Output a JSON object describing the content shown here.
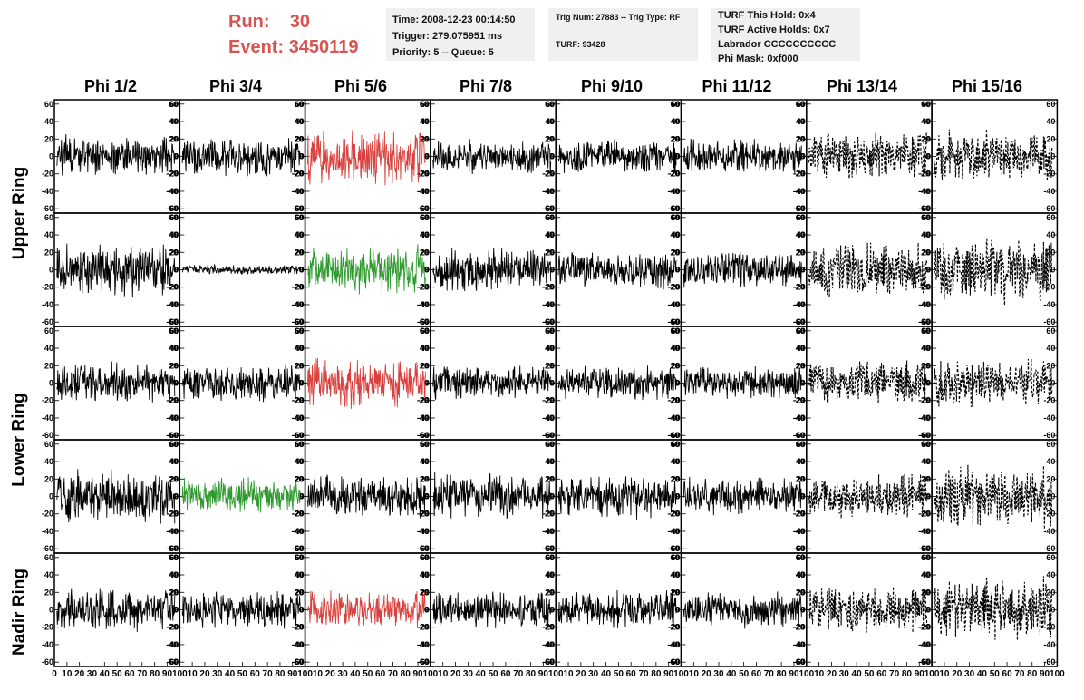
{
  "header": {
    "run_label": "Run:",
    "run_value": "30",
    "event_label": "Event:",
    "event_value": "3450119"
  },
  "info_time": {
    "time": "Time: 2008-12-23 00:14:50",
    "trigger": "Trigger: 279.075951 ms",
    "priority": "Priority: 5 -- Queue: 5"
  },
  "info_trig": {
    "trig": "Trig Num: 27883 -- Trig Type: RF",
    "turf": "TURF: 93428"
  },
  "info_turf": {
    "hold": "TURF This Hold: 0x4",
    "active": "TURF Active Holds: 0x7",
    "labrador": "Labrador CCCCCCCCCC",
    "phimask": "Phi Mask: 0xf000"
  },
  "phi_labels": [
    "Phi 1/2",
    "Phi 3/4",
    "Phi 5/6",
    "Phi 7/8",
    "Phi 9/10",
    "Phi 11/12",
    "Phi 13/14",
    "Phi 15/16"
  ],
  "ring_labels": [
    "Upper Ring",
    "Lower Ring",
    "Nadir Ring"
  ],
  "y_ticks": [
    60,
    40,
    20,
    0,
    -20,
    -40,
    -60
  ],
  "x_ticks": [
    0,
    10,
    20,
    30,
    40,
    50,
    60,
    70,
    80,
    90,
    100
  ],
  "colors": {
    "black": "#000000",
    "red": "#d9413e",
    "green": "#2e9a2e",
    "header_red": "#d9534f",
    "info_bg": "#f0f0f0"
  },
  "chart_data": {
    "type": "line",
    "x_range": [
      0,
      100
    ],
    "y_range": [
      -65,
      65
    ],
    "rows": 5,
    "columns": 8,
    "panel_colors": [
      [
        "black",
        "black",
        "red",
        "black",
        "black",
        "black",
        "black-dashed",
        "black-dashed"
      ],
      [
        "black",
        "black",
        "green",
        "black",
        "black",
        "black",
        "black-dashed",
        "black-dashed"
      ],
      [
        "black",
        "black",
        "red",
        "black",
        "black",
        "black",
        "black-dashed",
        "black-dashed"
      ],
      [
        "black",
        "green",
        "black",
        "black",
        "black",
        "black",
        "black-dashed",
        "black-dashed"
      ],
      [
        "black",
        "black",
        "red",
        "black",
        "black",
        "black",
        "black-dashed",
        "black-dashed"
      ]
    ],
    "panel_amplitudes": [
      [
        18,
        16,
        24,
        14,
        14,
        14,
        20,
        22
      ],
      [
        22,
        4,
        20,
        18,
        16,
        16,
        24,
        28
      ],
      [
        17,
        16,
        22,
        14,
        14,
        14,
        20,
        20
      ],
      [
        22,
        16,
        18,
        20,
        18,
        16,
        18,
        26
      ],
      [
        18,
        16,
        16,
        16,
        16,
        16,
        20,
        26
      ]
    ]
  }
}
